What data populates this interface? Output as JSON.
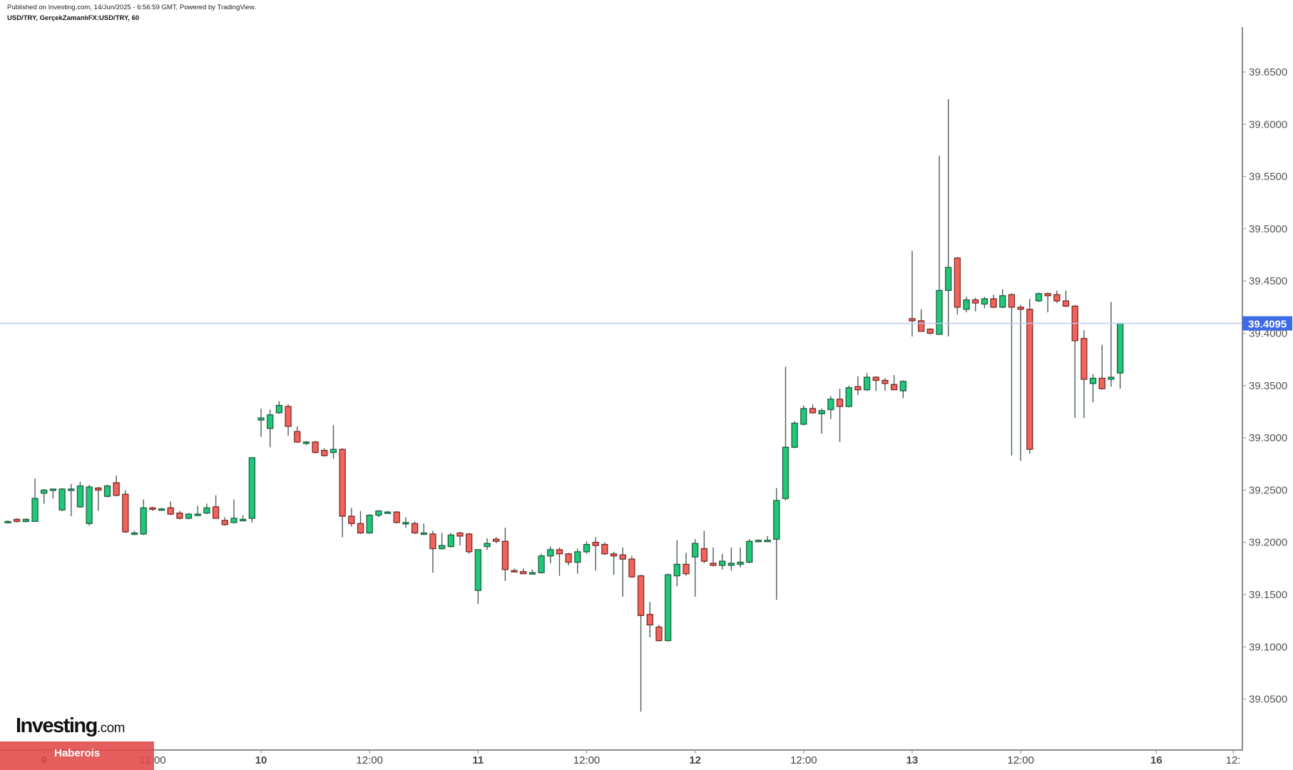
{
  "header": {
    "published": "Published on Investing.com, 14/Jun/2025 - 6:56:59 GMT, Powered by TradingView.",
    "symbol": "USD/TRY, GerçekZamanlıFX:USD/TRY, 60"
  },
  "branding": {
    "logo_main": "Investing",
    "logo_suffix": ".com",
    "banner": "Haberois"
  },
  "colors": {
    "up": "#1ec97a",
    "up_border": "#1f5f40",
    "down": "#f2645a",
    "down_border": "#7a2a28",
    "wick": "#4d5f58",
    "last_price": "#3d6ae6",
    "price_line": "#b9c8f2"
  },
  "chart_data": {
    "type": "candlestick",
    "title": "USD/TRY, GerçekZamanlıFX:USD/TRY, 60",
    "interval": "60",
    "ylim": [
      39.0,
      39.69
    ],
    "y_ticks": [
      "39.0500",
      "39.1000",
      "39.1500",
      "39.2000",
      "39.2500",
      "39.3000",
      "39.3500",
      "39.4000",
      "39.4500",
      "39.5000",
      "39.5500",
      "39.6000",
      "39.6500"
    ],
    "x_ticks": [
      {
        "label": "9",
        "bar": 5,
        "bold": true
      },
      {
        "label": "12:00",
        "bar": 17
      },
      {
        "label": "10",
        "bar": 29,
        "bold": true
      },
      {
        "label": "12:00",
        "bar": 41
      },
      {
        "label": "11",
        "bar": 53,
        "bold": true
      },
      {
        "label": "12:00",
        "bar": 65
      },
      {
        "label": "12",
        "bar": 77,
        "bold": true
      },
      {
        "label": "12:00",
        "bar": 89
      },
      {
        "label": "13",
        "bar": 101,
        "bold": true
      },
      {
        "label": "12:00",
        "bar": 113
      },
      {
        "label": "16",
        "bar": 128,
        "bold": true
      },
      {
        "label": "12:",
        "bar": 136.5
      }
    ],
    "last_price": "39.4095",
    "ohlc_fields": [
      "open",
      "high",
      "low",
      "close"
    ],
    "candles": [
      [
        39.22,
        39.221,
        39.219,
        39.22
      ],
      [
        39.222,
        39.223,
        39.219,
        39.22
      ],
      [
        39.22,
        39.223,
        39.219,
        39.222
      ],
      [
        39.22,
        39.261,
        39.22,
        39.242
      ],
      [
        39.247,
        39.251,
        39.237,
        39.25
      ],
      [
        39.251,
        39.251,
        39.242,
        39.251
      ],
      [
        39.231,
        39.252,
        39.23,
        39.251
      ],
      [
        39.251,
        39.256,
        39.225,
        39.251
      ],
      [
        39.234,
        39.258,
        39.233,
        39.254
      ],
      [
        39.218,
        39.255,
        39.216,
        39.253
      ],
      [
        39.252,
        39.253,
        39.23,
        39.25
      ],
      [
        39.244,
        39.255,
        39.243,
        39.254
      ],
      [
        39.257,
        39.264,
        39.244,
        39.245
      ],
      [
        39.246,
        39.25,
        39.209,
        39.21
      ],
      [
        39.209,
        39.211,
        39.207,
        39.209
      ],
      [
        39.208,
        39.241,
        39.207,
        39.233
      ],
      [
        39.233,
        39.234,
        39.23,
        39.232
      ],
      [
        39.232,
        39.233,
        39.231,
        39.232
      ],
      [
        39.233,
        39.239,
        39.226,
        39.227
      ],
      [
        39.228,
        39.23,
        39.222,
        39.223
      ],
      [
        39.223,
        39.228,
        39.222,
        39.227
      ],
      [
        39.227,
        39.235,
        39.227,
        39.227
      ],
      [
        39.228,
        39.237,
        39.227,
        39.233
      ],
      [
        39.234,
        39.245,
        39.223,
        39.223
      ],
      [
        39.221,
        39.224,
        39.216,
        39.217
      ],
      [
        39.219,
        39.241,
        39.218,
        39.223
      ],
      [
        39.222,
        39.226,
        39.221,
        39.222
      ],
      [
        39.223,
        39.281,
        39.219,
        39.281
      ],
      [
        39.317,
        39.328,
        39.301,
        39.319
      ],
      [
        39.309,
        39.327,
        39.291,
        39.322
      ],
      [
        39.324,
        39.335,
        39.323,
        39.331
      ],
      [
        39.33,
        39.332,
        39.302,
        39.311
      ],
      [
        39.306,
        39.311,
        39.295,
        39.296
      ],
      [
        39.296,
        39.297,
        39.293,
        39.296
      ],
      [
        39.296,
        39.297,
        39.285,
        39.286
      ],
      [
        39.288,
        39.29,
        39.282,
        39.283
      ],
      [
        39.286,
        39.312,
        39.28,
        39.289
      ],
      [
        39.289,
        39.29,
        39.205,
        39.225
      ],
      [
        39.225,
        39.233,
        39.215,
        39.218
      ],
      [
        39.218,
        39.23,
        39.208,
        39.209
      ],
      [
        39.209,
        39.227,
        39.208,
        39.226
      ],
      [
        39.226,
        39.231,
        39.224,
        39.23
      ],
      [
        39.229,
        39.23,
        39.228,
        39.229
      ],
      [
        39.229,
        39.23,
        39.218,
        39.219
      ],
      [
        39.219,
        39.224,
        39.214,
        39.219
      ],
      [
        39.218,
        39.22,
        39.208,
        39.209
      ],
      [
        39.209,
        39.218,
        39.207,
        39.209
      ],
      [
        39.208,
        39.211,
        39.171,
        39.194
      ],
      [
        39.194,
        39.209,
        39.193,
        39.197
      ],
      [
        39.196,
        39.209,
        39.195,
        39.207
      ],
      [
        39.209,
        39.21,
        39.197,
        39.206
      ],
      [
        39.208,
        39.209,
        39.189,
        39.191
      ],
      [
        39.154,
        39.193,
        39.141,
        39.193
      ],
      [
        39.196,
        39.204,
        39.193,
        39.199
      ],
      [
        39.203,
        39.205,
        39.199,
        39.201
      ],
      [
        39.201,
        39.214,
        39.163,
        39.174
      ],
      [
        39.173,
        39.175,
        39.172,
        39.172
      ],
      [
        39.172,
        39.175,
        39.17,
        39.17
      ],
      [
        39.171,
        39.174,
        39.17,
        39.171
      ],
      [
        39.171,
        39.189,
        39.17,
        39.187
      ],
      [
        39.187,
        39.196,
        39.18,
        39.193
      ],
      [
        39.193,
        39.195,
        39.168,
        39.189
      ],
      [
        39.189,
        39.19,
        39.178,
        39.181
      ],
      [
        39.181,
        39.194,
        39.17,
        39.191
      ],
      [
        39.191,
        39.201,
        39.189,
        39.198
      ],
      [
        39.2,
        39.205,
        39.173,
        39.197
      ],
      [
        39.198,
        39.2,
        39.188,
        39.189
      ],
      [
        39.189,
        39.191,
        39.169,
        39.187
      ],
      [
        39.188,
        39.195,
        39.148,
        39.184
      ],
      [
        39.184,
        39.187,
        39.166,
        39.167
      ],
      [
        39.168,
        39.169,
        39.038,
        39.13
      ],
      [
        39.131,
        39.143,
        39.109,
        39.121
      ],
      [
        39.119,
        39.121,
        39.105,
        39.106
      ],
      [
        39.106,
        39.17,
        39.105,
        39.169
      ],
      [
        39.168,
        39.202,
        39.158,
        39.179
      ],
      [
        39.179,
        39.19,
        39.168,
        39.17
      ],
      [
        39.186,
        39.203,
        39.148,
        39.199
      ],
      [
        39.194,
        39.211,
        39.18,
        39.182
      ],
      [
        39.18,
        39.195,
        39.177,
        39.178
      ],
      [
        39.178,
        39.189,
        39.174,
        39.182
      ],
      [
        39.178,
        39.195,
        39.173,
        39.18
      ],
      [
        39.179,
        39.195,
        39.176,
        39.181
      ],
      [
        39.181,
        39.203,
        39.18,
        39.201
      ],
      [
        39.202,
        39.203,
        39.2,
        39.202
      ],
      [
        39.202,
        39.206,
        39.201,
        39.202
      ],
      [
        39.203,
        39.252,
        39.145,
        39.24
      ],
      [
        39.242,
        39.368,
        39.24,
        39.291
      ],
      [
        39.291,
        39.316,
        39.29,
        39.314
      ],
      [
        39.313,
        39.331,
        39.312,
        39.328
      ],
      [
        39.328,
        39.332,
        39.323,
        39.324
      ],
      [
        39.323,
        39.328,
        39.304,
        39.326
      ],
      [
        39.327,
        39.34,
        39.318,
        39.337
      ],
      [
        39.337,
        39.347,
        39.296,
        39.33
      ],
      [
        39.33,
        39.35,
        39.329,
        39.348
      ],
      [
        39.349,
        39.359,
        39.341,
        39.346
      ],
      [
        39.346,
        39.362,
        39.345,
        39.358
      ],
      [
        39.358,
        39.359,
        39.345,
        39.355
      ],
      [
        39.355,
        39.357,
        39.345,
        39.352
      ],
      [
        39.351,
        39.36,
        39.349,
        39.346
      ],
      [
        39.345,
        39.355,
        39.338,
        39.354
      ],
      [
        39.414,
        39.479,
        39.397,
        39.412
      ],
      [
        39.412,
        39.423,
        39.402,
        39.402
      ],
      [
        39.404,
        39.405,
        39.399,
        39.4
      ],
      [
        39.399,
        39.57,
        39.399,
        39.441
      ],
      [
        39.441,
        39.624,
        39.397,
        39.463
      ],
      [
        39.472,
        39.473,
        39.418,
        39.425
      ],
      [
        39.423,
        39.435,
        39.42,
        39.432
      ],
      [
        39.432,
        39.434,
        39.421,
        39.429
      ],
      [
        39.428,
        39.435,
        39.424,
        39.433
      ],
      [
        39.433,
        39.437,
        39.424,
        39.425
      ],
      [
        39.425,
        39.442,
        39.424,
        39.436
      ],
      [
        39.437,
        39.438,
        39.283,
        39.425
      ],
      [
        39.425,
        39.427,
        39.278,
        39.423
      ],
      [
        39.423,
        39.433,
        39.285,
        39.289
      ],
      [
        39.431,
        39.439,
        39.43,
        39.438
      ],
      [
        39.438,
        39.439,
        39.42,
        39.436
      ],
      [
        39.437,
        39.441,
        39.429,
        39.431
      ],
      [
        39.431,
        39.441,
        39.425,
        39.426
      ],
      [
        39.426,
        39.427,
        39.319,
        39.393
      ],
      [
        39.395,
        39.403,
        39.319,
        39.356
      ],
      [
        39.352,
        39.361,
        39.334,
        39.357
      ],
      [
        39.357,
        39.389,
        39.346,
        39.347
      ],
      [
        39.356,
        39.43,
        39.349,
        39.358
      ],
      [
        39.362,
        39.4095,
        39.347,
        39.4095
      ]
    ]
  }
}
